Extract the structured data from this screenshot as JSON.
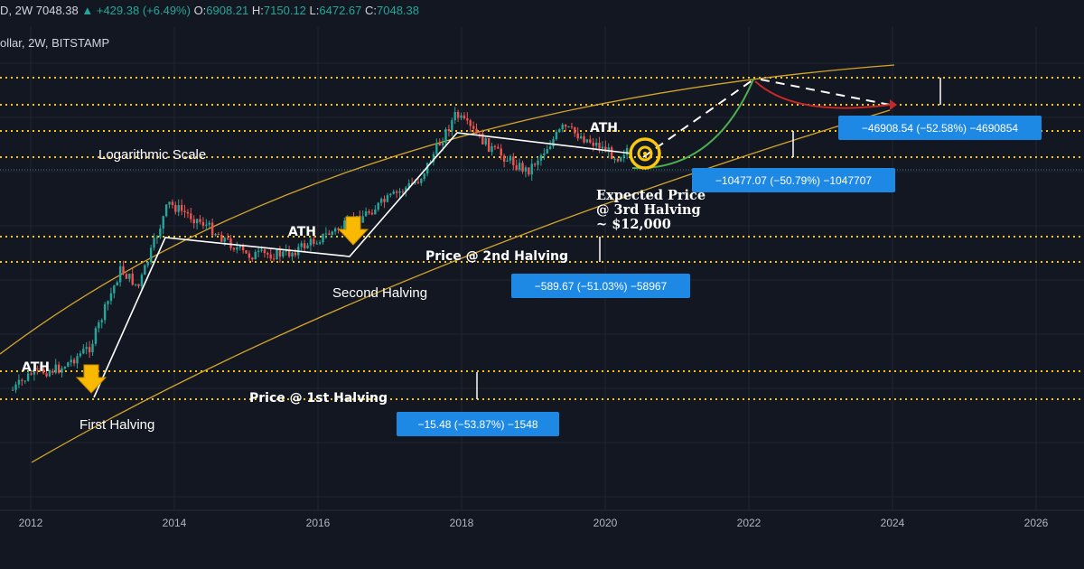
{
  "header": {
    "symbol_fragment": "D, 2W",
    "last": "7048.38",
    "change": "+429.38 (+6.49%)",
    "o_label": "O:",
    "o": "6908.21",
    "h_label": "H:",
    "h": "7150.12",
    "l_label": "L:",
    "l": "6472.67",
    "c_label": "C:",
    "c": "7048.38",
    "subtitle": "ollar, 2W, BITSTAMP"
  },
  "annotations": {
    "log_scale": "Logarithmic Scale",
    "ath_1": "ATH",
    "ath_2": "ATH",
    "ath_3": "ATH",
    "first_halving": "First Halving",
    "second_halving": "Second Halving",
    "price_1st": "Price @ 1st Halving",
    "price_2nd": "Price @ 2nd Halving",
    "expected_1": "Expected Price",
    "expected_2": "@ 3rd Halving",
    "expected_3": "~ $12,000",
    "box_1": "−15.48 (−53.87%) −1548",
    "box_2": "−589.67 (−51.03%) −58967",
    "box_3": "−10477.07 (−50.79%) −1047707",
    "box_4": "−46908.54 (−52.58%) −4690854"
  },
  "colors": {
    "background": "#131722",
    "candle_up": "#26a69a",
    "candle_down": "#ef5350",
    "channel": "#d4a52a",
    "level_dots": "#f5c518",
    "arrow": "#f9b900",
    "box": "#1e88e5",
    "projection_up": "#4caf50",
    "projection_down": "#c62828"
  },
  "chart_data": {
    "type": "candlestick",
    "scale": "log",
    "x_ticks": [
      "2012",
      "2014",
      "2016",
      "2018",
      "2020",
      "2022",
      "2024",
      "2026"
    ],
    "price_path_approx": [
      {
        "date": "2011-10",
        "price": 3
      },
      {
        "date": "2012-01",
        "price": 5
      },
      {
        "date": "2012-06",
        "price": 6
      },
      {
        "date": "2012-11",
        "price": 12
      },
      {
        "date": "2013-04",
        "price": 140
      },
      {
        "date": "2013-07",
        "price": 80
      },
      {
        "date": "2013-12",
        "price": 1150
      },
      {
        "date": "2014-06",
        "price": 600
      },
      {
        "date": "2015-01",
        "price": 220
      },
      {
        "date": "2015-08",
        "price": 230
      },
      {
        "date": "2016-07",
        "price": 650
      },
      {
        "date": "2017-06",
        "price": 2500
      },
      {
        "date": "2017-12",
        "price": 19500
      },
      {
        "date": "2018-06",
        "price": 6500
      },
      {
        "date": "2018-12",
        "price": 3200
      },
      {
        "date": "2019-06",
        "price": 13000
      },
      {
        "date": "2019-12",
        "price": 7200
      },
      {
        "date": "2020-03",
        "price": 5000
      },
      {
        "date": "2020-05",
        "price": 7048.38
      }
    ],
    "events": [
      {
        "name": "First Halving",
        "date": "2012-11",
        "ath": "ATH",
        "drawdown": "−15.48 (−53.87%) −1548"
      },
      {
        "name": "Second Halving",
        "date": "2016-07",
        "ath": "ATH",
        "drawdown": "−589.67 (−51.03%) −58967"
      },
      {
        "name": "3rd Halving",
        "date": "2020-05",
        "ath": "ATH",
        "drawdown": "−10477.07 (−50.79%) −1047707",
        "expected_price": 12000
      },
      {
        "name": "Projected",
        "date": "2022-02",
        "drawdown": "−46908.54 (−52.58%) −4690854"
      }
    ],
    "grid": true
  }
}
